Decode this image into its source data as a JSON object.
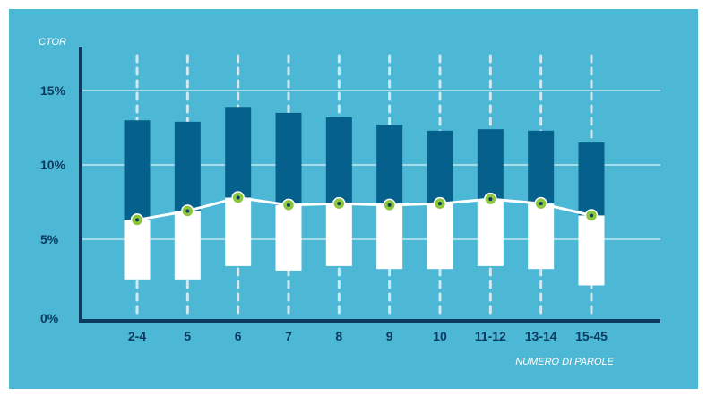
{
  "chart_data": {
    "type": "bar",
    "ylabel": "CTOR",
    "xlabel": "NUMERO DI PAROLE",
    "ylim": [
      0,
      18
    ],
    "yticks": [
      "0%",
      "5%",
      "10%",
      "15%"
    ],
    "ytick_values": [
      0,
      5,
      10,
      15
    ],
    "grid": true,
    "categories": [
      "2-4",
      "5",
      "6",
      "7",
      "8",
      "9",
      "10",
      "11-12",
      "13-14",
      "15-45"
    ],
    "series": [
      {
        "kind": "range",
        "high": [
          13.0,
          12.9,
          13.9,
          13.5,
          13.2,
          12.7,
          12.3,
          12.4,
          12.3,
          11.5
        ],
        "low": [
          2.3,
          2.3,
          3.2,
          2.9,
          3.2,
          3.0,
          3.0,
          3.2,
          3.0,
          1.9
        ]
      },
      {
        "kind": "line",
        "values": [
          6.3,
          6.9,
          7.8,
          7.3,
          7.4,
          7.3,
          7.4,
          7.7,
          7.4,
          6.6
        ]
      }
    ],
    "colors": {
      "background": "#4db8d6",
      "high_bar": "#05608c",
      "low_bar": "#ffffff",
      "line": "#ffffff",
      "marker": "#8cc63f",
      "axis": "#0b3a5e",
      "gridline": "#ffffff"
    }
  }
}
